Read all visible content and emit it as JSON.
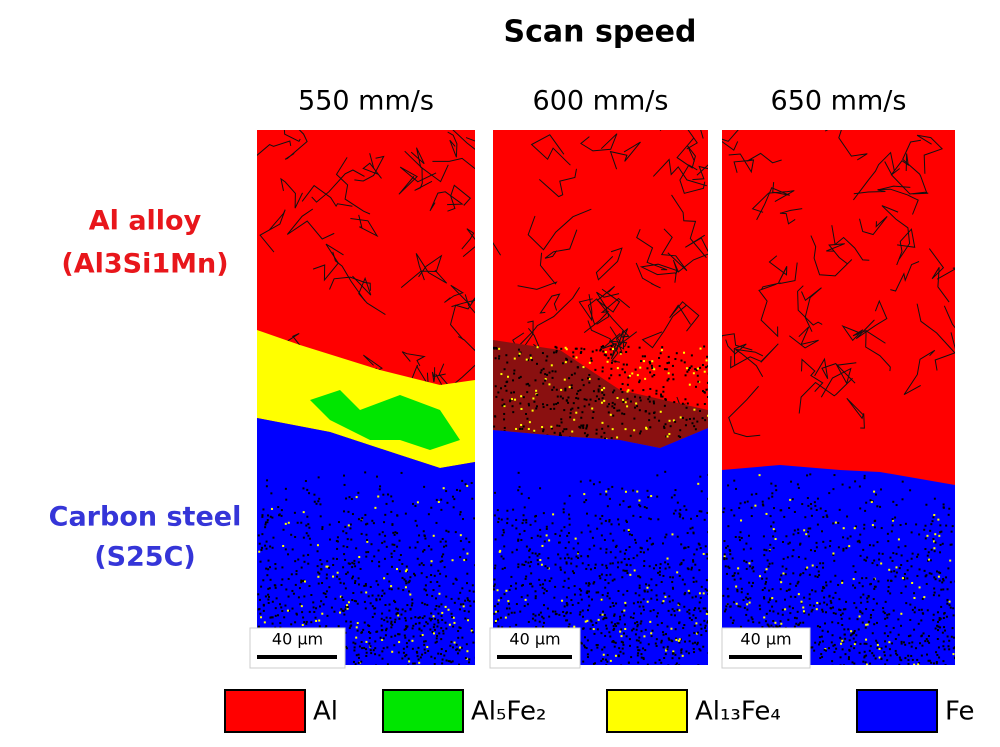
{
  "title": "Scan speed",
  "columns": [
    {
      "label": "550 mm/s",
      "scale_bar": "40 µm"
    },
    {
      "label": "600 mm/s",
      "scale_bar": "40 µm"
    },
    {
      "label": "650 mm/s",
      "scale_bar": "40 µm"
    }
  ],
  "rows": [
    {
      "lines": [
        "Al alloy",
        "(Al3Si1Mn)"
      ],
      "color": "#e8161b"
    },
    {
      "lines": [
        "Carbon steel",
        "(S25C)"
      ],
      "color": "#3535d8"
    }
  ],
  "legend": [
    {
      "label": "Al",
      "color": "#ff0000"
    },
    {
      "label": "Al₅Fe₂",
      "color": "#00e600"
    },
    {
      "label": "Al₁₃Fe₄",
      "color": "#ffff00"
    },
    {
      "label": "Fe",
      "color": "#0000ff"
    }
  ]
}
